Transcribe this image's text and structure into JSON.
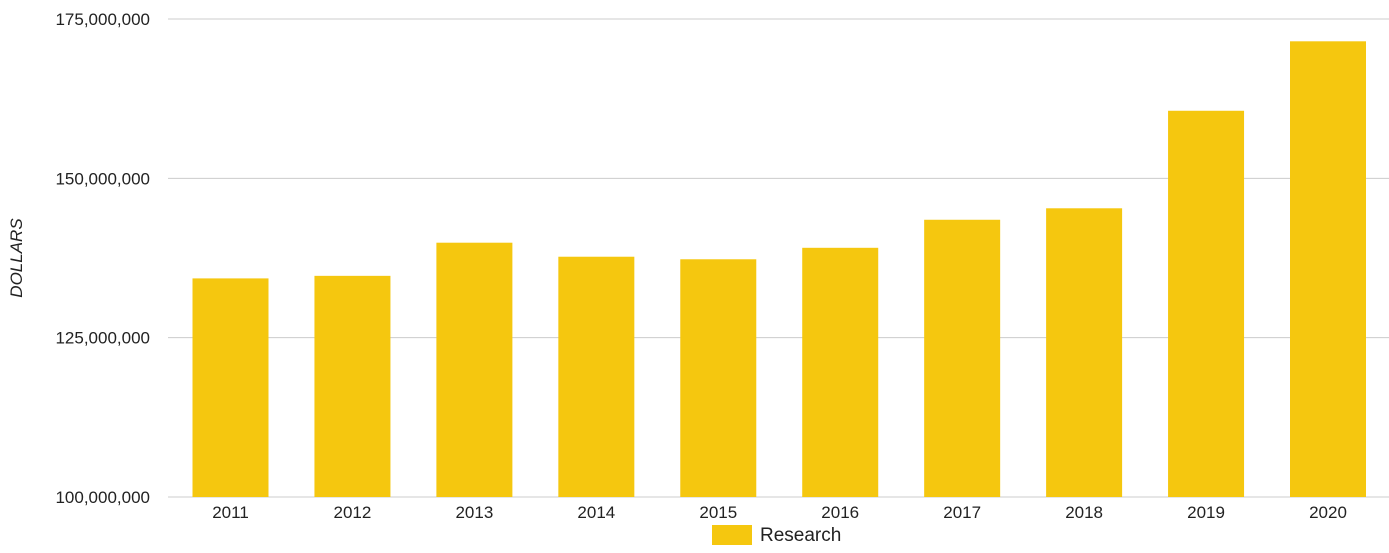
{
  "chart_data": {
    "type": "bar",
    "title": "",
    "xlabel": "",
    "ylabel": "DOLLARS",
    "categories": [
      "2011",
      "2012",
      "2013",
      "2014",
      "2015",
      "2016",
      "2017",
      "2018",
      "2019",
      "2020"
    ],
    "series": [
      {
        "name": "Research",
        "color": "#F5C70F",
        "values": [
          134300000,
          134700000,
          139900000,
          137700000,
          137300000,
          139100000,
          143500000,
          145300000,
          160600000,
          171500000
        ]
      }
    ],
    "ylim": [
      100000000,
      175000000
    ],
    "yticks": [
      100000000,
      125000000,
      150000000,
      175000000
    ],
    "ytick_labels": [
      "100,000,000",
      "125,000,000",
      "150,000,000",
      "175,000,000"
    ],
    "grid": true,
    "legend_position": "bottom-center"
  }
}
